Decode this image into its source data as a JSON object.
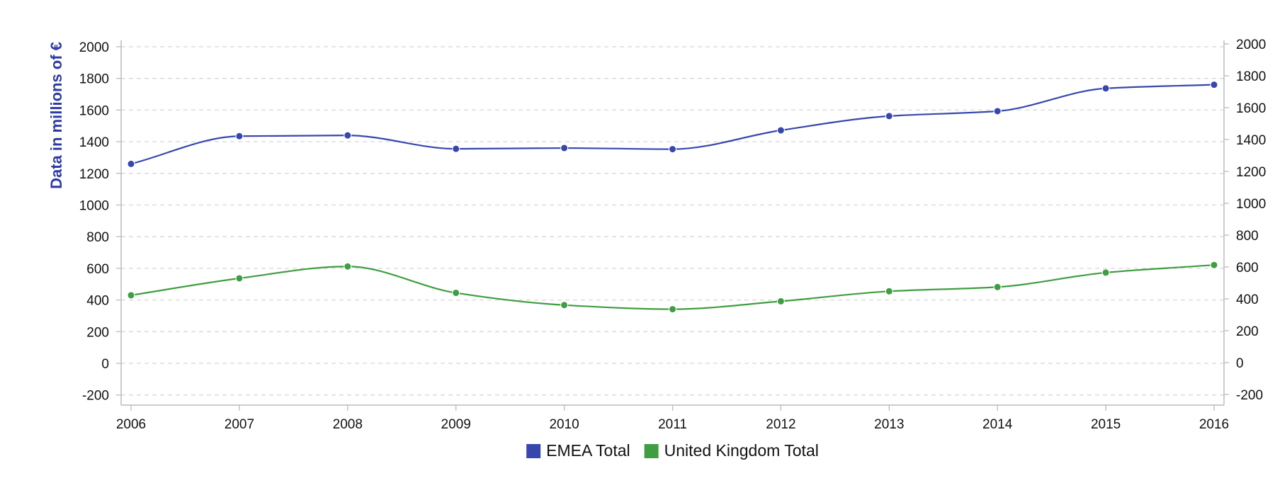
{
  "chart_data": {
    "type": "line",
    "title": "",
    "xlabel": "",
    "ylabel": "Data in millions of €",
    "categories": [
      "2006",
      "2007",
      "2008",
      "2009",
      "2010",
      "2011",
      "2012",
      "2013",
      "2014",
      "2015",
      "2016"
    ],
    "y_ticks": [
      "2000",
      "1800",
      "1600",
      "1400",
      "1200",
      "1000",
      "800",
      "600",
      "400",
      "200",
      "0",
      "-200"
    ],
    "y2_ticks": [
      "2000",
      "1800",
      "1600",
      "1400",
      "1200",
      "1000",
      "800",
      "600",
      "400",
      "200",
      "0",
      "-200"
    ],
    "ylim": [
      -200,
      2000
    ],
    "y2lim": [
      -200,
      2000
    ],
    "grid": "horizontal dashed",
    "curve": "smooth",
    "legend_position": "bottom-center",
    "series": [
      {
        "name": "EMEA Total",
        "color": "#3747ad",
        "values": [
          1260,
          1435,
          1440,
          1355,
          1360,
          1353,
          1472,
          1562,
          1593,
          1737,
          1760
        ]
      },
      {
        "name": "United Kingdom Total",
        "color": "#3f9e41",
        "values": [
          430,
          537,
          612,
          445,
          368,
          342,
          392,
          455,
          482,
          573,
          621
        ]
      }
    ],
    "colors": {
      "axis_title": "#2e3ba6",
      "grid": "#d7d7d7",
      "axis": "#bbbbbb"
    }
  }
}
